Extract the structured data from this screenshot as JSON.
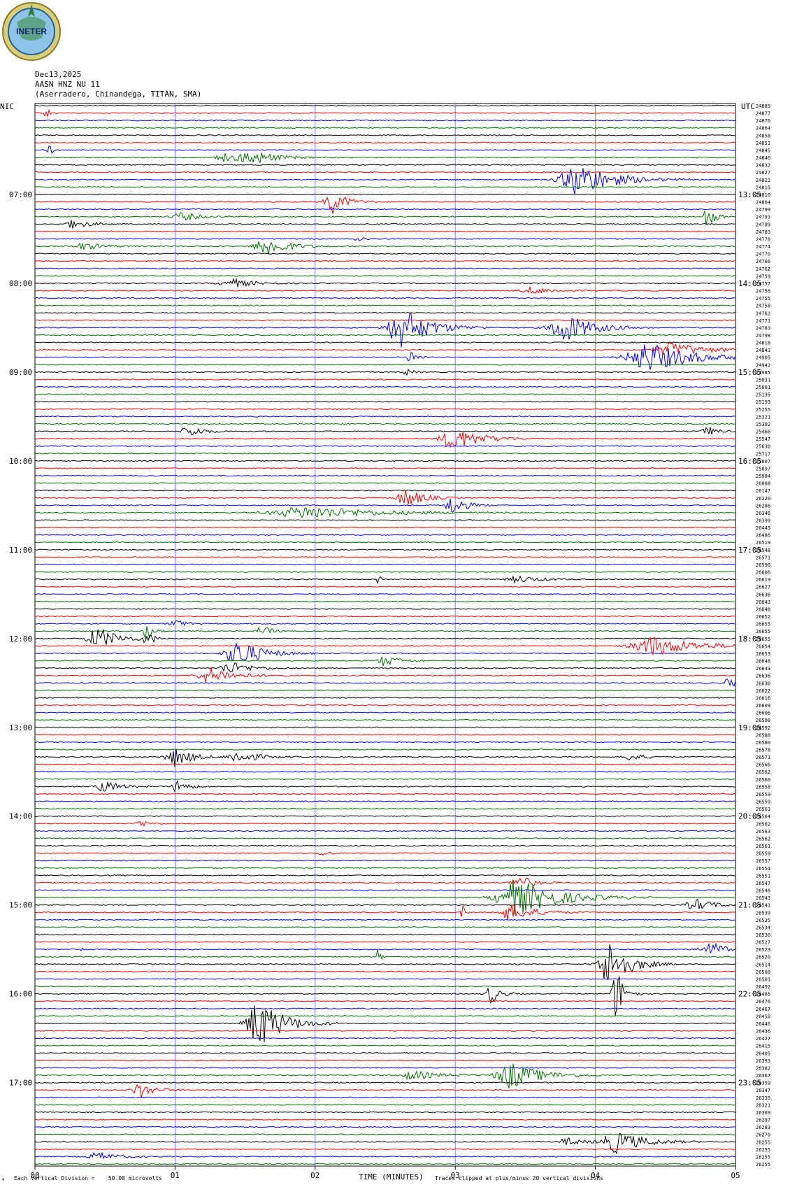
{
  "header": {
    "logo_text": "INETER",
    "date": "Dec13,2025",
    "channel": "AASN HNZ NU 11",
    "location": "(Aserradero, Chinandega, TITAN, SMA)"
  },
  "labels": {
    "left_tz": "NIC",
    "right_tz": "UTC"
  },
  "footer": {
    "scale_note": "Each Vertical Division =    50.00 microvolts",
    "xlabel": "TIME (MINUTES)",
    "clip_note": "Traces clipped at plus/minus 20 vertical divisions"
  },
  "colors": {
    "trace_cycle": [
      "#000000",
      "#ff0000",
      "#0000ff",
      "#007000"
    ],
    "gridline": "#7f7fff"
  },
  "chart_data": {
    "type": "line",
    "title": "Dec13,2025",
    "xlabel": "TIME (MINUTES)",
    "x_ticks": [
      "00",
      "01",
      "02",
      "03",
      "04",
      "05"
    ],
    "xlim": [
      0,
      5
    ],
    "left_time_labels": [
      "07:00",
      "08:00",
      "09:00",
      "10:00",
      "11:00",
      "12:00",
      "13:00",
      "14:00",
      "15:00",
      "16:00",
      "17:00"
    ],
    "right_time_labels": [
      "13:05",
      "14:05",
      "15:05",
      "16:05",
      "17:05",
      "18:05",
      "19:05",
      "20:05",
      "21:05",
      "22:05",
      "23:05"
    ],
    "trace_count": 144,
    "trace_offsets": [
      "24885",
      "24877",
      "24870",
      "24864",
      "24858",
      "24851",
      "24845",
      "24840",
      "24832",
      "24827",
      "24821",
      "24815",
      "24810",
      "24804",
      "24799",
      "24793",
      "24789",
      "24783",
      "24778",
      "24774",
      "24770",
      "24766",
      "24762",
      "24759",
      "24757",
      "24756",
      "24755",
      "24758",
      "24762",
      "24771",
      "24783",
      "24798",
      "24818",
      "24843",
      "24905",
      "24942",
      "24985",
      "25031",
      "25081",
      "25135",
      "25193",
      "25255",
      "25321",
      "25392",
      "25466",
      "25547",
      "25630",
      "25717",
      "25807",
      "25897",
      "25984",
      "26068",
      "26147",
      "26220",
      "26286",
      "26346",
      "26399",
      "26445",
      "26486",
      "26519",
      "26548",
      "26571",
      "26590",
      "26606",
      "26619",
      "26627",
      "26636",
      "26643",
      "26648",
      "26652",
      "26655",
      "26655",
      "26655",
      "26654",
      "26653",
      "26648",
      "26643",
      "26636",
      "26630",
      "26622",
      "26616",
      "26609",
      "26606",
      "26598",
      "26592",
      "26588",
      "26580",
      "26578",
      "26571",
      "26566",
      "26562",
      "26560",
      "26558",
      "26559",
      "26559",
      "26561",
      "26564",
      "26562",
      "26563",
      "26562",
      "26561",
      "26559",
      "26557",
      "26554",
      "26551",
      "26547",
      "26546",
      "26543",
      "26541",
      "26539",
      "26535",
      "26534",
      "26530",
      "26527",
      "26523",
      "26520",
      "26514",
      "26508",
      "26501",
      "26492",
      "26485",
      "26476",
      "26467",
      "26458",
      "26446",
      "26436",
      "26427",
      "26415",
      "26405",
      "26393",
      "26382",
      "26367",
      "26359",
      "26347",
      "26335",
      "26321",
      "26309",
      "26297",
      "26283",
      "26270",
      "26255",
      "26255",
      "26255",
      "26255"
    ],
    "events": [
      {
        "trace": 1,
        "t": 0.08,
        "amp": 8,
        "dur": 0.06
      },
      {
        "trace": 6,
        "t": 0.1,
        "amp": 10,
        "dur": 0.05
      },
      {
        "trace": 7,
        "t": 1.55,
        "amp": 10,
        "dur": 0.35
      },
      {
        "trace": 7,
        "t": 1.35,
        "amp": 6,
        "dur": 0.25
      },
      {
        "trace": 10,
        "t": 3.88,
        "amp": 24,
        "dur": 0.5
      },
      {
        "trace": 13,
        "t": 2.12,
        "amp": 18,
        "dur": 0.2
      },
      {
        "trace": 15,
        "t": 4.8,
        "amp": 20,
        "dur": 0.1
      },
      {
        "trace": 15,
        "t": 1.05,
        "amp": 6,
        "dur": 0.3
      },
      {
        "trace": 16,
        "t": 0.28,
        "amp": 6,
        "dur": 0.25
      },
      {
        "trace": 18,
        "t": 2.3,
        "amp": 5,
        "dur": 0.1
      },
      {
        "trace": 19,
        "t": 1.65,
        "amp": 16,
        "dur": 0.3
      },
      {
        "trace": 19,
        "t": 0.35,
        "amp": 5,
        "dur": 0.3
      },
      {
        "trace": 24,
        "t": 1.4,
        "amp": 7,
        "dur": 0.3
      },
      {
        "trace": 25,
        "t": 3.55,
        "amp": 5,
        "dur": 0.3
      },
      {
        "trace": 30,
        "t": 2.62,
        "amp": 30,
        "dur": 0.4
      },
      {
        "trace": 30,
        "t": 3.78,
        "amp": 22,
        "dur": 0.4
      },
      {
        "trace": 34,
        "t": 4.38,
        "amp": 22,
        "dur": 0.6
      },
      {
        "trace": 33,
        "t": 4.55,
        "amp": 10,
        "dur": 0.5
      },
      {
        "trace": 34,
        "t": 2.68,
        "amp": 10,
        "dur": 0.1
      },
      {
        "trace": 36,
        "t": 2.65,
        "amp": 5,
        "dur": 0.1
      },
      {
        "trace": 44,
        "t": 1.1,
        "amp": 9,
        "dur": 0.2
      },
      {
        "trace": 44,
        "t": 4.8,
        "amp": 7,
        "dur": 0.15
      },
      {
        "trace": 45,
        "t": 3.0,
        "amp": 16,
        "dur": 0.4
      },
      {
        "trace": 53,
        "t": 2.65,
        "amp": 14,
        "dur": 0.25
      },
      {
        "trace": 54,
        "t": 2.98,
        "amp": 14,
        "dur": 0.2
      },
      {
        "trace": 55,
        "t": 1.95,
        "amp": 9,
        "dur": 1.0
      },
      {
        "trace": 64,
        "t": 2.45,
        "amp": 8,
        "dur": 0.05
      },
      {
        "trace": 64,
        "t": 3.45,
        "amp": 5,
        "dur": 0.3
      },
      {
        "trace": 70,
        "t": 1.0,
        "amp": 7,
        "dur": 0.15
      },
      {
        "trace": 71,
        "t": 0.8,
        "amp": 14,
        "dur": 0.1
      },
      {
        "trace": 71,
        "t": 1.62,
        "amp": 8,
        "dur": 0.15
      },
      {
        "trace": 72,
        "t": 0.45,
        "amp": 16,
        "dur": 0.3
      },
      {
        "trace": 72,
        "t": 0.8,
        "amp": 10,
        "dur": 0.1
      },
      {
        "trace": 73,
        "t": 4.42,
        "amp": 14,
        "dur": 0.6
      },
      {
        "trace": 74,
        "t": 1.45,
        "amp": 20,
        "dur": 0.35
      },
      {
        "trace": 75,
        "t": 2.5,
        "amp": 8,
        "dur": 0.2
      },
      {
        "trace": 76,
        "t": 1.4,
        "amp": 9,
        "dur": 0.3
      },
      {
        "trace": 77,
        "t": 1.25,
        "amp": 12,
        "dur": 0.35
      },
      {
        "trace": 78,
        "t": 4.95,
        "amp": 9,
        "dur": 0.1
      },
      {
        "trace": 88,
        "t": 1.0,
        "amp": 14,
        "dur": 0.25
      },
      {
        "trace": 88,
        "t": 1.45,
        "amp": 9,
        "dur": 0.3
      },
      {
        "trace": 88,
        "t": 4.25,
        "amp": 6,
        "dur": 0.2
      },
      {
        "trace": 92,
        "t": 0.5,
        "amp": 8,
        "dur": 0.25
      },
      {
        "trace": 92,
        "t": 1.02,
        "amp": 10,
        "dur": 0.15
      },
      {
        "trace": 97,
        "t": 0.75,
        "amp": 5,
        "dur": 0.15
      },
      {
        "trace": 101,
        "t": 2.05,
        "amp": 5,
        "dur": 0.1
      },
      {
        "trace": 105,
        "t": 3.45,
        "amp": 12,
        "dur": 0.2
      },
      {
        "trace": 107,
        "t": 3.45,
        "amp": 26,
        "dur": 0.6
      },
      {
        "trace": 108,
        "t": 4.72,
        "amp": 8,
        "dur": 0.3
      },
      {
        "trace": 109,
        "t": 3.4,
        "amp": 12,
        "dur": 0.35
      },
      {
        "trace": 109,
        "t": 3.05,
        "amp": 10,
        "dur": 0.05
      },
      {
        "trace": 115,
        "t": 2.45,
        "amp": 20,
        "dur": 0.03
      },
      {
        "trace": 114,
        "t": 4.82,
        "amp": 10,
        "dur": 0.3
      },
      {
        "trace": 114,
        "t": 0.3,
        "amp": 6,
        "dur": 0.05
      },
      {
        "trace": 116,
        "t": 4.1,
        "amp": 34,
        "dur": 0.3
      },
      {
        "trace": 120,
        "t": 4.15,
        "amp": 40,
        "dur": 0.12
      },
      {
        "trace": 120,
        "t": 3.25,
        "amp": 14,
        "dur": 0.15
      },
      {
        "trace": 124,
        "t": 1.6,
        "amp": 36,
        "dur": 0.35
      },
      {
        "trace": 131,
        "t": 3.4,
        "amp": 20,
        "dur": 0.4
      },
      {
        "trace": 131,
        "t": 2.7,
        "amp": 6,
        "dur": 0.4
      },
      {
        "trace": 133,
        "t": 0.75,
        "amp": 12,
        "dur": 0.2
      },
      {
        "trace": 140,
        "t": 4.15,
        "amp": 16,
        "dur": 0.4
      },
      {
        "trace": 140,
        "t": 3.8,
        "amp": 6,
        "dur": 0.2
      },
      {
        "trace": 142,
        "t": 0.45,
        "amp": 6,
        "dur": 0.3
      }
    ]
  }
}
